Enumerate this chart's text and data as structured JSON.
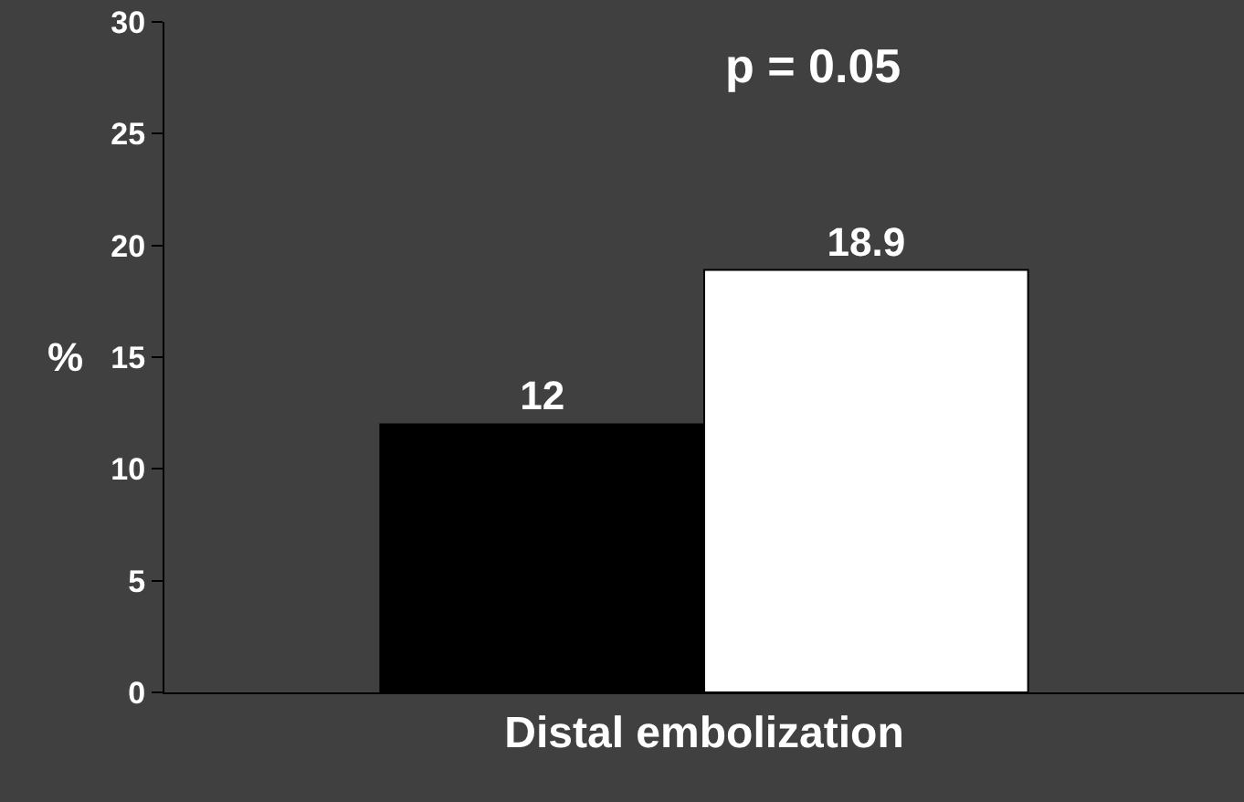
{
  "chart_data": {
    "type": "bar",
    "ylabel": "%",
    "categories": [
      "Distal embolization"
    ],
    "series": [
      {
        "color": "#000000",
        "values": [
          12
        ]
      },
      {
        "color": "#ffffff",
        "values": [
          18.9
        ]
      }
    ],
    "ylim": [
      0,
      30
    ],
    "yticks": [
      0,
      5,
      10,
      15,
      20,
      25,
      30
    ],
    "data_labels": true,
    "grid": false,
    "annotations": [
      "p = 0.05"
    ]
  }
}
